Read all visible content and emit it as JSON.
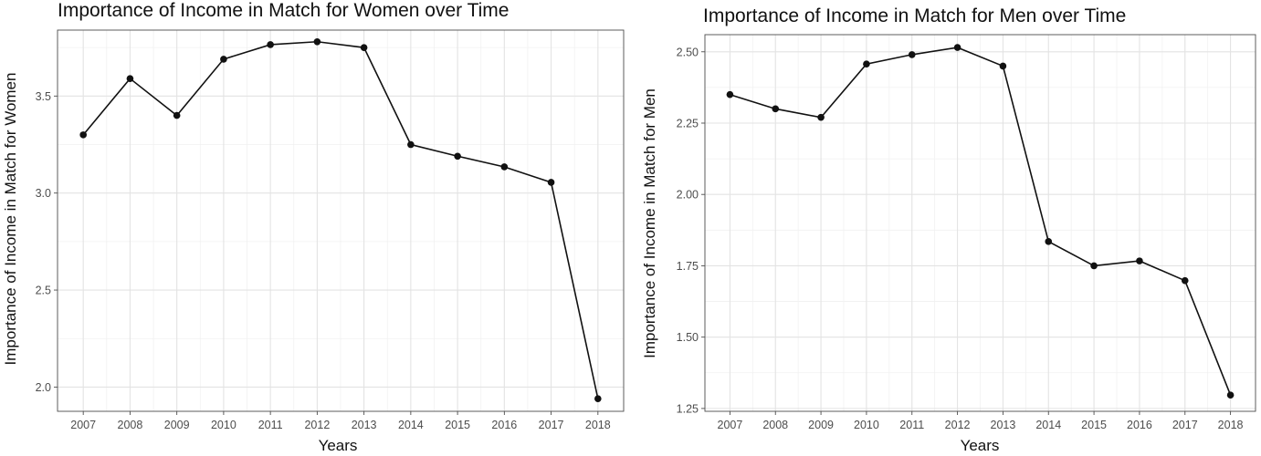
{
  "chart_data": [
    {
      "type": "line",
      "title": "Importance of Income in Match for Women over Time",
      "xlabel": "Years",
      "ylabel": "Importance of Income in Match for Women",
      "x": [
        2007,
        2008,
        2009,
        2010,
        2011,
        2012,
        2013,
        2014,
        2015,
        2016,
        2017,
        2018
      ],
      "values": [
        3.3,
        3.59,
        3.4,
        3.69,
        3.765,
        3.78,
        3.75,
        3.25,
        3.19,
        3.135,
        3.055,
        1.94
      ],
      "ylim": [
        1.875,
        3.84
      ],
      "yticks": [
        2.0,
        2.5,
        3.0,
        3.5
      ],
      "ytick_labels": [
        "2.0",
        "2.5",
        "3.0",
        "3.5"
      ],
      "grid": true,
      "colors": {
        "line": "#111111",
        "points": "#111111",
        "grid": "#e3e3e3"
      }
    },
    {
      "type": "line",
      "title": "Importance of Income in Match for Men over Time",
      "xlabel": "Years",
      "ylabel": "Importance of Income in Match for Men",
      "x": [
        2007,
        2008,
        2009,
        2010,
        2011,
        2012,
        2013,
        2014,
        2015,
        2016,
        2017,
        2018
      ],
      "values": [
        2.35,
        2.3,
        2.27,
        2.457,
        2.49,
        2.515,
        2.45,
        1.835,
        1.75,
        1.767,
        1.698,
        1.297
      ],
      "ylim": [
        1.24,
        2.56
      ],
      "yticks": [
        1.25,
        1.5,
        1.75,
        2.0,
        2.25,
        2.5
      ],
      "ytick_labels": [
        "1.25",
        "1.50",
        "1.75",
        "2.00",
        "2.25",
        "2.50"
      ],
      "grid": true,
      "colors": {
        "line": "#111111",
        "points": "#111111",
        "grid": "#e3e3e3"
      }
    }
  ]
}
